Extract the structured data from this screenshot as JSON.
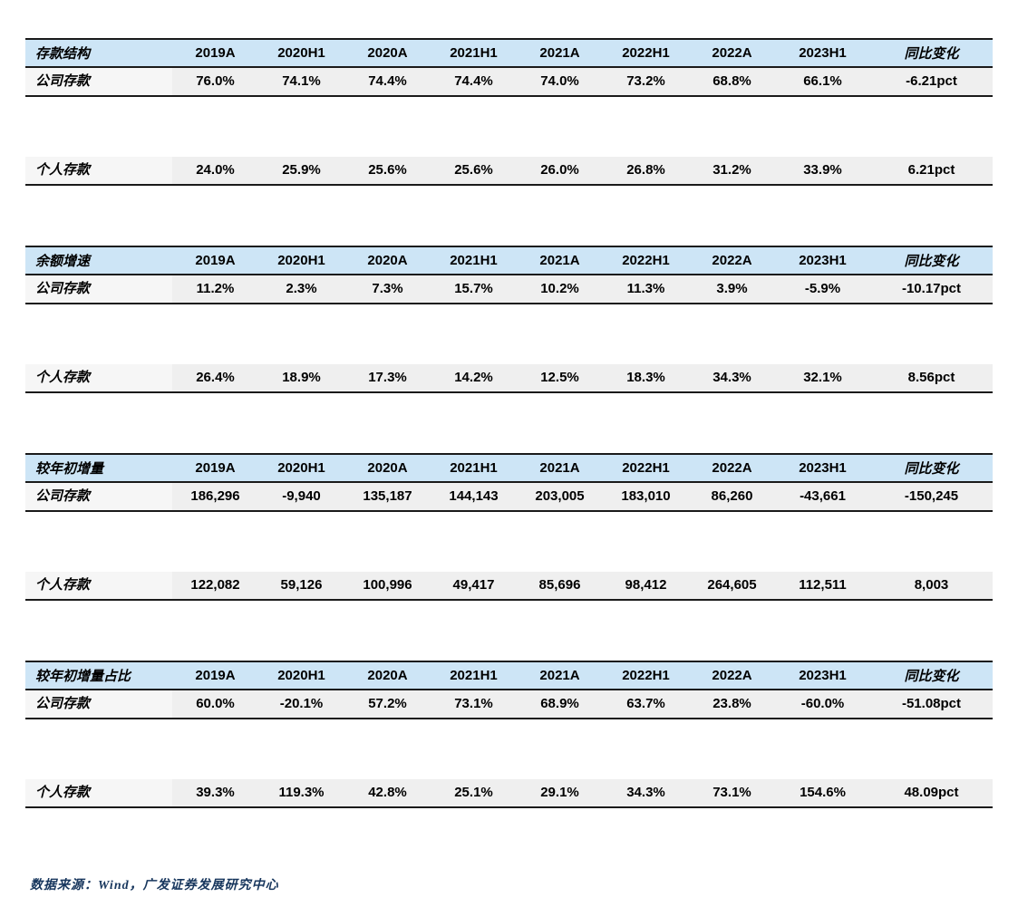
{
  "columns": [
    "2019A",
    "2020H1",
    "2020A",
    "2021H1",
    "2021A",
    "2022H1",
    "2022A",
    "2023H1",
    "同比变化"
  ],
  "sections": [
    {
      "title": "存款结构",
      "rows": [
        {
          "label": "公司存款",
          "values": [
            "76.0%",
            "74.1%",
            "74.4%",
            "74.4%",
            "74.0%",
            "73.2%",
            "68.8%",
            "66.1%",
            "-6.21pct"
          ]
        },
        {
          "label": "个人存款",
          "values": [
            "24.0%",
            "25.9%",
            "25.6%",
            "25.6%",
            "26.0%",
            "26.8%",
            "31.2%",
            "33.9%",
            "6.21pct"
          ]
        }
      ]
    },
    {
      "title": "余额增速",
      "rows": [
        {
          "label": "公司存款",
          "values": [
            "11.2%",
            "2.3%",
            "7.3%",
            "15.7%",
            "10.2%",
            "11.3%",
            "3.9%",
            "-5.9%",
            "-10.17pct"
          ]
        },
        {
          "label": "个人存款",
          "values": [
            "26.4%",
            "18.9%",
            "17.3%",
            "14.2%",
            "12.5%",
            "18.3%",
            "34.3%",
            "32.1%",
            "8.56pct"
          ]
        }
      ]
    },
    {
      "title": "较年初增量",
      "rows": [
        {
          "label": "公司存款",
          "values": [
            "186,296",
            "-9,940",
            "135,187",
            "144,143",
            "203,005",
            "183,010",
            "86,260",
            "-43,661",
            "-150,245"
          ]
        },
        {
          "label": "个人存款",
          "values": [
            "122,082",
            "59,126",
            "100,996",
            "49,417",
            "85,696",
            "98,412",
            "264,605",
            "112,511",
            "8,003"
          ]
        }
      ]
    },
    {
      "title": "较年初增量占比",
      "rows": [
        {
          "label": "公司存款",
          "values": [
            "60.0%",
            "-20.1%",
            "57.2%",
            "73.1%",
            "68.9%",
            "63.7%",
            "23.8%",
            "-60.0%",
            "-51.08pct"
          ]
        },
        {
          "label": "个人存款",
          "values": [
            "39.3%",
            "119.3%",
            "42.8%",
            "25.1%",
            "29.1%",
            "34.3%",
            "73.1%",
            "154.6%",
            "48.09pct"
          ]
        }
      ]
    }
  ],
  "footer": {
    "text": "数据来源：Wind，广发证券发展研究中心"
  },
  "colors": {
    "header_bg": "#cde5f6",
    "row_bg": "#efefef",
    "label_bg": "#f6f6f6",
    "border": "#1a1a1a",
    "source_text": "#17365d"
  }
}
